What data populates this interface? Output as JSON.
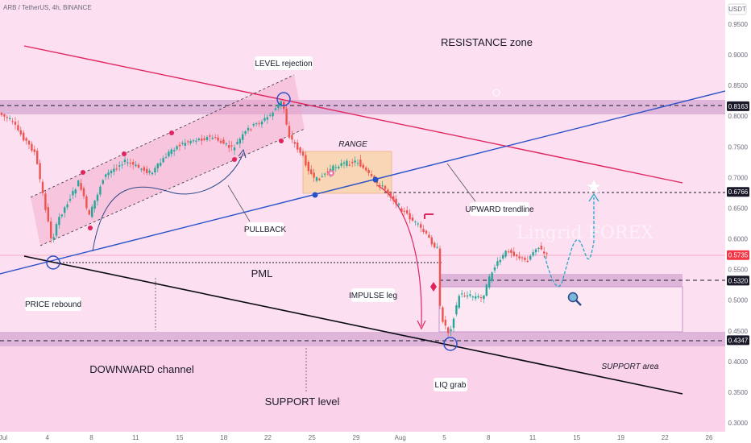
{
  "chart_data": {
    "type": "candlestick",
    "title": "ARB / TetherUS, 4h, BINANCE",
    "currency": "USDT",
    "ylim": [
      0.3,
      0.97
    ],
    "y_ticks": [
      "0.9500",
      "0.9000",
      "0.8500",
      "0.8000",
      "0.7500",
      "0.7000",
      "0.6500",
      "0.6000",
      "0.5500",
      "0.5000",
      "0.4500",
      "0.4000",
      "0.3500",
      "0.3000"
    ],
    "x_ticks": [
      "Jul",
      "4",
      "8",
      "11",
      "15",
      "18",
      "22",
      "25",
      "29",
      "Aug",
      "5",
      "8",
      "11",
      "15",
      "19",
      "22",
      "26"
    ],
    "price_levels": [
      {
        "value": 0.8163,
        "label": "0.8163",
        "color": "#1a1a2a"
      },
      {
        "value": 0.6766,
        "label": "0.6766",
        "color": "#1a1a2a"
      },
      {
        "value": 0.5735,
        "label": "0.5735",
        "color": "#f23645"
      },
      {
        "value": 0.532,
        "label": "0.5320",
        "color": "#1a1a2a"
      },
      {
        "value": 0.4347,
        "label": "0.4347",
        "color": "#1a1a2a"
      }
    ],
    "annotations": [
      "LEVEL rejection",
      "RESISTANCE zone",
      "RANGE",
      "UPWARD trendline",
      "PULLBACK",
      "PML",
      "PRICE rebound",
      "IMPULSE leg",
      "DOWNWARD channel",
      "SUPPORT level",
      "LIQ grab",
      "SUPPORT area"
    ],
    "watermark": "Lingrid FOREX",
    "colors": {
      "up": "#26a69a",
      "down": "#ef5350",
      "resistance": "#e0245e",
      "trend": "#2850c8",
      "zone": "#c792c8"
    }
  }
}
